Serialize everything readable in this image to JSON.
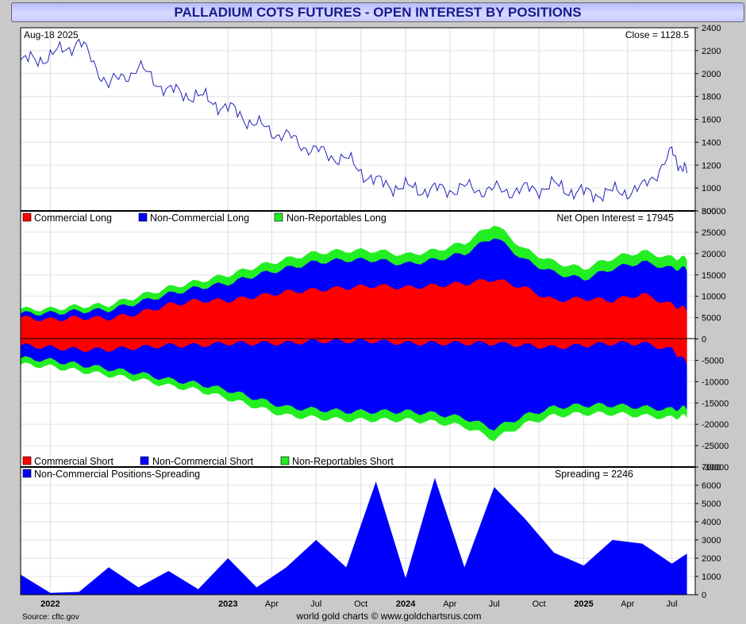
{
  "title": "PALLADIUM COTS FUTURES - OPEN INTEREST BY POSITIONS",
  "footer": {
    "source": "Source: cftc.gov",
    "credit": "world gold charts © www.goldchartsrus.com"
  },
  "colors": {
    "blue": "#0000ff",
    "red": "#ff0000",
    "green": "#22ee22",
    "price_line": "#2222bb"
  },
  "chart_data": [
    {
      "type": "line",
      "name": "price",
      "date_label": "Aug-18  2025",
      "readout": "Close = 1128.5",
      "ylim": [
        800,
        2400
      ],
      "yticks": [
        "2400",
        "2200",
        "2000",
        "1800",
        "1600",
        "1400",
        "1200",
        "1000",
        "800"
      ],
      "x": [
        "2021-11",
        "2022-01",
        "2022-03",
        "2022-05",
        "2022-07",
        "2022-09",
        "2022-11",
        "2023-01",
        "2023-03",
        "2023-05",
        "2023-07",
        "2023-09",
        "2023-11",
        "2024-01",
        "2024-03",
        "2024-05",
        "2024-07",
        "2024-09",
        "2024-11",
        "2025-01",
        "2025-03",
        "2025-05",
        "2025-07",
        "2025-08"
      ],
      "values": [
        2100,
        2150,
        2280,
        1900,
        2050,
        1850,
        1800,
        1700,
        1550,
        1450,
        1320,
        1250,
        1050,
        1000,
        980,
        1000,
        980,
        980,
        1020,
        950,
        960,
        990,
        1300,
        1128.5
      ]
    },
    {
      "type": "area",
      "name": "open-interest",
      "readout": "Net Open Interest = 17945",
      "legend_top": [
        "Commercial Long",
        "Non-Commercial Long",
        "Non-Reportables Long"
      ],
      "legend_bottom": [
        "Commercial Short",
        "Non-Commercial Short",
        "Non-Reportables Short"
      ],
      "ylim": [
        -30000,
        30000
      ],
      "yticks": [
        "30000",
        "25000",
        "20000",
        "15000",
        "10000",
        "5000",
        "0",
        "-5000",
        "-10000",
        "-15000",
        "-20000",
        "-25000",
        "-30000"
      ],
      "x": [
        "2021-11",
        "2022-01",
        "2022-03",
        "2022-05",
        "2022-07",
        "2022-09",
        "2022-11",
        "2023-01",
        "2023-03",
        "2023-05",
        "2023-07",
        "2023-09",
        "2023-11",
        "2024-01",
        "2024-03",
        "2024-05",
        "2024-07",
        "2024-09",
        "2024-11",
        "2025-01",
        "2025-03",
        "2025-05",
        "2025-07",
        "2025-08"
      ],
      "series": [
        {
          "name": "Commercial Long",
          "values": [
            5000,
            4500,
            5000,
            4800,
            6000,
            8000,
            9000,
            9000,
            10000,
            11000,
            11500,
            12000,
            12500,
            12000,
            12500,
            13000,
            14000,
            12000,
            9000,
            9500,
            9000,
            10500,
            8000,
            7000
          ]
        },
        {
          "name": "Non-Commercial Long",
          "values": [
            1000,
            1500,
            1500,
            2000,
            2500,
            2500,
            3000,
            4000,
            5000,
            5500,
            6500,
            6500,
            6000,
            5500,
            6000,
            7000,
            10000,
            6500,
            6500,
            4500,
            7500,
            7500,
            8500,
            9500
          ]
        },
        {
          "name": "Non-Reportables Long",
          "values": [
            1000,
            1000,
            1200,
            1200,
            1500,
            1500,
            1500,
            2000,
            2000,
            2200,
            2200,
            2200,
            2200,
            2200,
            2200,
            2500,
            3000,
            2500,
            2500,
            2500,
            2500,
            2500,
            2500,
            2500
          ]
        },
        {
          "name": "Commercial Short",
          "values": [
            -1500,
            -2000,
            -2500,
            -2500,
            -2000,
            -1500,
            -1500,
            -1000,
            -1000,
            -1000,
            -500,
            -500,
            -500,
            -1000,
            -1000,
            -1000,
            -1000,
            -1500,
            -2000,
            -1500,
            -1000,
            -1000,
            -2500,
            -5500
          ]
        },
        {
          "name": "Non-Commercial Short",
          "values": [
            -3000,
            -3000,
            -3500,
            -4500,
            -6000,
            -8000,
            -9000,
            -11000,
            -13000,
            -15000,
            -16000,
            -16500,
            -16500,
            -16000,
            -16500,
            -17500,
            -20000,
            -16500,
            -14000,
            -14000,
            -14500,
            -15000,
            -14000,
            -10500
          ]
        },
        {
          "name": "Non-Reportables Short",
          "values": [
            -1500,
            -1500,
            -1500,
            -1500,
            -1500,
            -1500,
            -1500,
            -2000,
            -2000,
            -2000,
            -2000,
            -2000,
            -2000,
            -2000,
            -2000,
            -2000,
            -2500,
            -2000,
            -2000,
            -2000,
            -2000,
            -2000,
            -2000,
            -2000
          ]
        }
      ]
    },
    {
      "type": "area",
      "name": "spreading",
      "legend": "Non-Commercial Positions-Spreading",
      "readout": "Spreading = 2246",
      "ylim": [
        0,
        7000
      ],
      "yticks": [
        "7000",
        "6000",
        "5000",
        "4000",
        "3000",
        "2000",
        "1000",
        "0"
      ],
      "x": [
        "2021-11",
        "2022-01",
        "2022-03",
        "2022-05",
        "2022-07",
        "2022-09",
        "2022-11",
        "2023-01",
        "2023-03",
        "2023-05",
        "2023-07",
        "2023-09",
        "2023-11",
        "2024-01",
        "2024-03",
        "2024-05",
        "2024-07",
        "2024-09",
        "2024-11",
        "2025-01",
        "2025-03",
        "2025-05",
        "2025-07",
        "2025-08"
      ],
      "values": [
        1100,
        100,
        150,
        1500,
        400,
        1300,
        300,
        2000,
        400,
        1500,
        3000,
        1500,
        6200,
        900,
        6400,
        1500,
        5900,
        4200,
        2300,
        1600,
        3000,
        2800,
        1700,
        2246
      ]
    }
  ],
  "x_axis_labels": [
    {
      "label": "2022",
      "bold": true,
      "date": "2022-01"
    },
    {
      "label": "2023",
      "bold": true,
      "date": "2023-01"
    },
    {
      "label": "Apr",
      "bold": false,
      "date": "2023-04"
    },
    {
      "label": "Jul",
      "bold": false,
      "date": "2023-07"
    },
    {
      "label": "Oct",
      "bold": false,
      "date": "2023-10"
    },
    {
      "label": "2024",
      "bold": true,
      "date": "2024-01"
    },
    {
      "label": "Apr",
      "bold": false,
      "date": "2024-04"
    },
    {
      "label": "Jul",
      "bold": false,
      "date": "2024-07"
    },
    {
      "label": "Oct",
      "bold": false,
      "date": "2024-10"
    },
    {
      "label": "2025",
      "bold": true,
      "date": "2025-01"
    },
    {
      "label": "Apr",
      "bold": false,
      "date": "2025-04"
    },
    {
      "label": "Jul",
      "bold": false,
      "date": "2025-07"
    }
  ]
}
